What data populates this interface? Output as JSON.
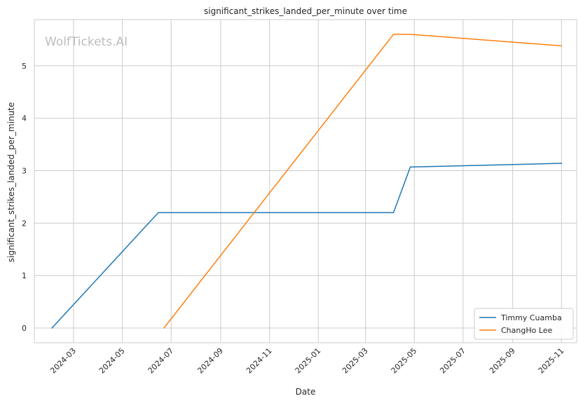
{
  "chart_data": {
    "type": "line",
    "title": "significant_strikes_landed_per_minute over time",
    "xlabel": "Date",
    "ylabel": "significant_strikes_landed_per_minute",
    "watermark": "WolfTickets.AI",
    "x_is_date": true,
    "xlim": [
      "2024-01-12",
      "2025-11-20"
    ],
    "ylim": [
      -0.28,
      5.88
    ],
    "x_ticks": [
      "2024-03",
      "2024-05",
      "2024-07",
      "2024-09",
      "2024-11",
      "2025-01",
      "2025-03",
      "2025-05",
      "2025-07",
      "2025-09",
      "2025-11"
    ],
    "y_ticks": [
      0,
      1,
      2,
      3,
      4,
      5
    ],
    "grid": true,
    "legend_position": "lower-right",
    "series": [
      {
        "name": "Timmy Cuamba",
        "color": "#1f77b4",
        "points": [
          {
            "x": "2024-02-03",
            "y": 0
          },
          {
            "x": "2024-06-15",
            "y": 2.2
          },
          {
            "x": "2025-04-05",
            "y": 2.2
          },
          {
            "x": "2025-04-26",
            "y": 3.07
          },
          {
            "x": "2025-11-01",
            "y": 3.14
          }
        ]
      },
      {
        "name": "ChangHo Lee",
        "color": "#ff7f0e",
        "points": [
          {
            "x": "2024-06-22",
            "y": 0
          },
          {
            "x": "2025-04-05",
            "y": 5.6
          },
          {
            "x": "2025-04-26",
            "y": 5.6
          },
          {
            "x": "2025-11-01",
            "y": 5.38
          }
        ]
      }
    ]
  }
}
